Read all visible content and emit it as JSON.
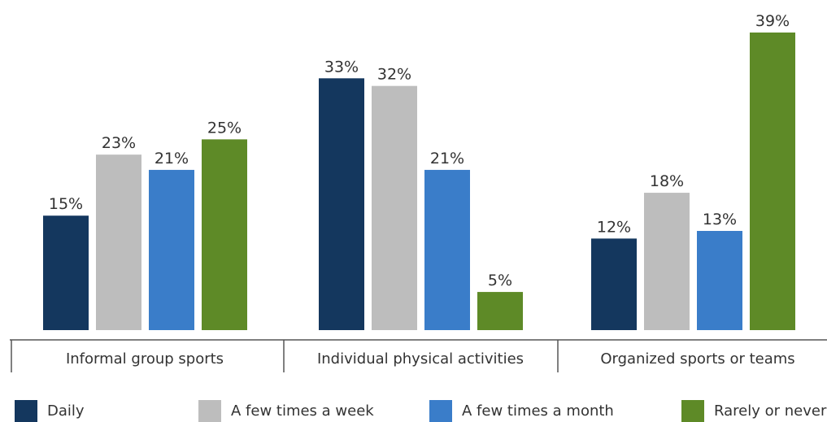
{
  "chart_data": {
    "type": "bar",
    "categories": [
      "Informal group sports",
      "Individual physical activities",
      "Organized sports or teams"
    ],
    "series": [
      {
        "name": "Daily",
        "color": "#14375e",
        "values": [
          15,
          33,
          12
        ],
        "labels": [
          "15%",
          "33%",
          "12%"
        ]
      },
      {
        "name": "A few times a week",
        "color": "#bdbdbd",
        "values": [
          23,
          32,
          18
        ],
        "labels": [
          "23%",
          "32%",
          "18%"
        ]
      },
      {
        "name": "A few times a month",
        "color": "#3a7dc9",
        "values": [
          21,
          21,
          13
        ],
        "labels": [
          "21%",
          "21%",
          "13%"
        ]
      },
      {
        "name": "Rarely or never",
        "color": "#5e8a27",
        "values": [
          25,
          5,
          39
        ],
        "labels": [
          "25%",
          "5%",
          "39%"
        ]
      }
    ],
    "ylim": [
      0,
      39
    ],
    "value_unit": "%",
    "grid": false,
    "legend_position": "bottom"
  }
}
